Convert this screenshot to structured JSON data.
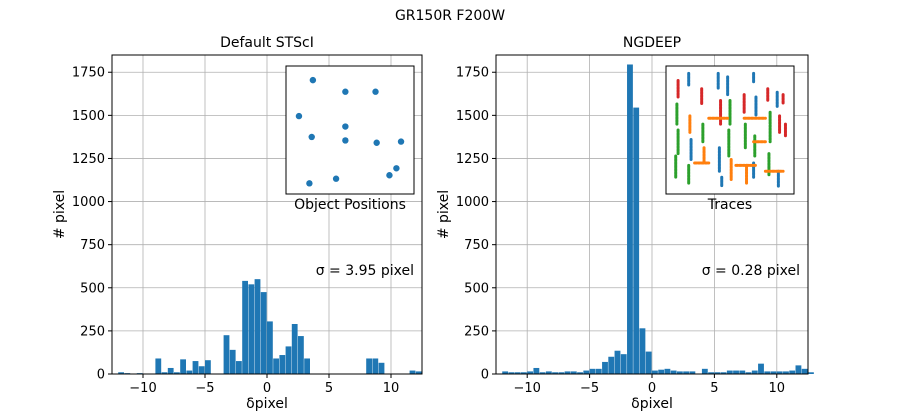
{
  "figure": {
    "suptitle": "GR150R F200W"
  },
  "chart_data": [
    {
      "type": "bar",
      "title": "Default STScI",
      "xlabel": "δpixel",
      "ylabel": "# pixel",
      "xlim": [
        -12.5,
        12.5
      ],
      "ylim": [
        0,
        1850
      ],
      "xticks": [
        -10,
        -5,
        0,
        5,
        10
      ],
      "yticks": [
        0,
        250,
        500,
        750,
        1000,
        1250,
        1500,
        1750
      ],
      "grid": true,
      "bin_width": 0.5,
      "bin_start": -12,
      "values": [
        10,
        5,
        0,
        5,
        0,
        0,
        90,
        10,
        35,
        10,
        85,
        20,
        75,
        45,
        80,
        0,
        0,
        225,
        140,
        75,
        540,
        520,
        550,
        475,
        305,
        90,
        110,
        160,
        290,
        220,
        90,
        0,
        0,
        0,
        0,
        0,
        0,
        0,
        0,
        0,
        90,
        90,
        65,
        0,
        0,
        0,
        0,
        20,
        15,
        0,
        0
      ],
      "annotation": "σ = 3.95 pixel",
      "inset": {
        "label": "Object Positions",
        "points": [
          [
            0.18,
            0.93
          ],
          [
            0.46,
            0.83
          ],
          [
            0.72,
            0.83
          ],
          [
            0.06,
            0.62
          ],
          [
            0.46,
            0.53
          ],
          [
            0.17,
            0.44
          ],
          [
            0.46,
            0.41
          ],
          [
            0.73,
            0.39
          ],
          [
            0.94,
            0.4
          ],
          [
            0.9,
            0.17
          ],
          [
            0.84,
            0.11
          ],
          [
            0.38,
            0.08
          ],
          [
            0.15,
            0.04
          ]
        ],
        "color": "#1f77b4"
      }
    },
    {
      "type": "bar",
      "title": "NGDEEP",
      "xlabel": "δpixel",
      "ylabel": "# pixel",
      "xlim": [
        -12.5,
        12.5
      ],
      "ylim": [
        0,
        1850
      ],
      "xticks": [
        -10,
        -5,
        0,
        5,
        10
      ],
      "yticks": [
        0,
        250,
        500,
        750,
        1000,
        1250,
        1500,
        1750
      ],
      "grid": true,
      "bin_width": 0.5,
      "bin_start": -12,
      "values": [
        15,
        10,
        10,
        10,
        15,
        35,
        10,
        15,
        10,
        10,
        15,
        15,
        10,
        20,
        30,
        30,
        70,
        100,
        135,
        115,
        1795,
        1545,
        265,
        130,
        20,
        25,
        30,
        20,
        15,
        15,
        15,
        0,
        30,
        10,
        10,
        10,
        20,
        20,
        20,
        10,
        20,
        60,
        15,
        15,
        15,
        15,
        20,
        50,
        30,
        10,
        0
      ],
      "annotation": "σ = 0.28 pixel",
      "inset": {
        "label": "Traces",
        "colors": [
          "#1f77b4",
          "#ff7f0e",
          "#2ca02c",
          "#d62728"
        ]
      }
    }
  ]
}
